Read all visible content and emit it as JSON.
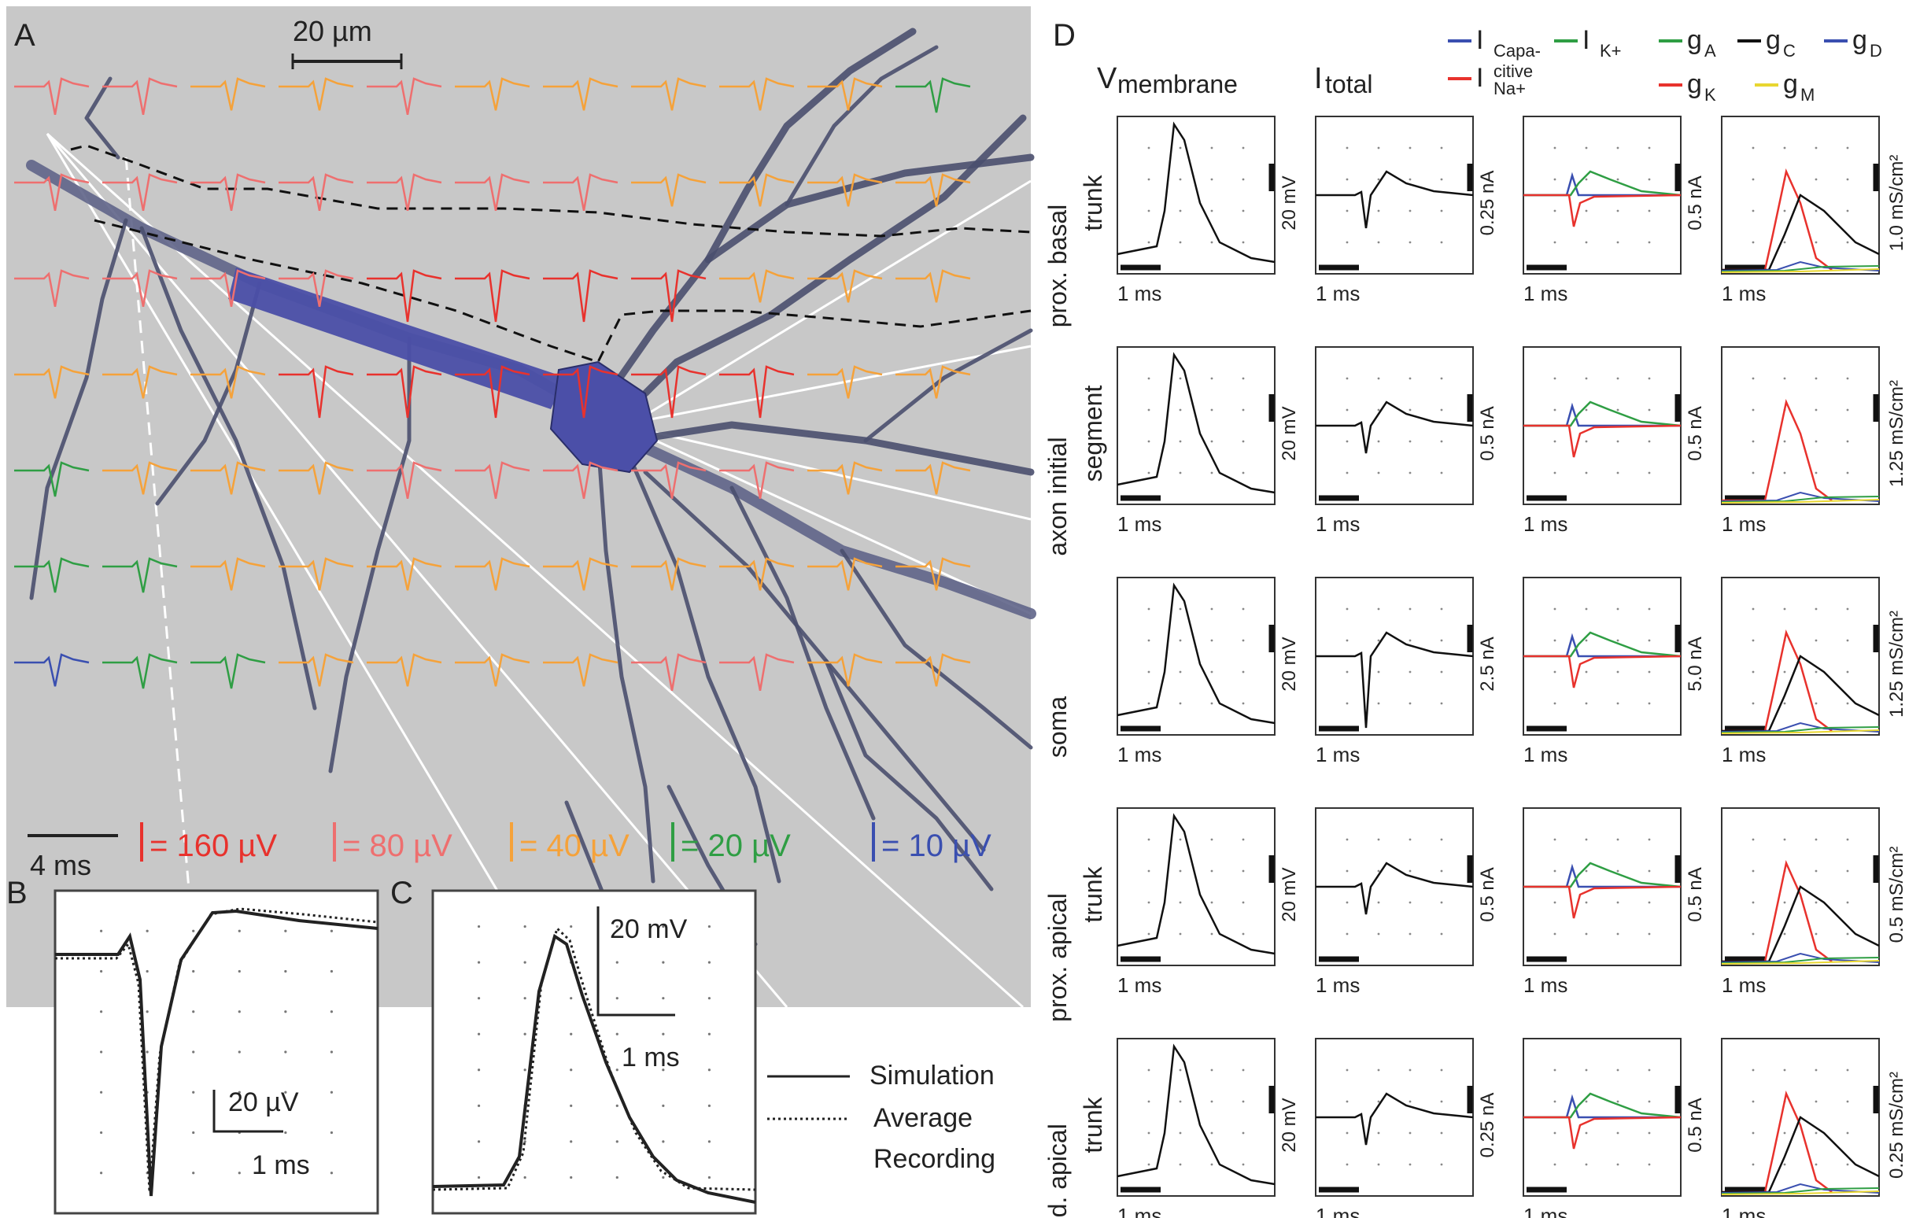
{
  "panels": {
    "A": {
      "letter": "A",
      "scale_bar_space": "20 µm",
      "scale_bar_time": "4 ms",
      "amplitude_legend": [
        {
          "text": "= 160 µV",
          "color": "#e8322d"
        },
        {
          "text": "= 80 µV",
          "color": "#ee6f6f"
        },
        {
          "text": "= 40 µV",
          "color": "#f5a23a"
        },
        {
          "text": "= 20 µV",
          "color": "#2f9e44"
        },
        {
          "text": "= 10 µV",
          "color": "#3a4fb0"
        }
      ],
      "colors": {
        "background": "#c8c8c8",
        "neuron": "#4a4f6e",
        "soma": "#4b4fa8",
        "contour": "#111111",
        "lines": "#ffffff"
      }
    },
    "B": {
      "letter": "B",
      "scale_amp": "20 µV",
      "scale_time": "1 ms"
    },
    "C": {
      "letter": "C",
      "scale_amp": "20 mV",
      "scale_time": "1 ms",
      "legend_sim": "Simulation",
      "legend_avg": "Average",
      "legend_rec": "Recording"
    },
    "D": {
      "letter": "D",
      "col_headers": {
        "vm_main": "V",
        "vm_sub": "membrane",
        "it_main": "I",
        "it_sub": "total"
      },
      "legend": [
        {
          "main": "I",
          "sub": "Capa-",
          "sub2": "citive",
          "color": "#3a4fb0"
        },
        {
          "main": "I",
          "sub": "K+",
          "color": "#2f9e44"
        },
        {
          "main": "I",
          "sub": "Na+",
          "color": "#e8322d"
        },
        {
          "main": "g",
          "sub": "A",
          "color": "#2f9e44"
        },
        {
          "main": "g",
          "sub": "C",
          "color": "#111111"
        },
        {
          "main": "g",
          "sub": "D",
          "color": "#3a4fb0"
        },
        {
          "main": "g",
          "sub": "K",
          "color": "#e8322d"
        },
        {
          "main": "g",
          "sub": "M",
          "color": "#e8d630"
        }
      ],
      "time_label": "1 ms",
      "rows": [
        {
          "label1": "prox. basal",
          "label2": "trunk",
          "vm_scale": "20 mV",
          "i_scale": "0.25 nA",
          "g_i_scale": "0.5 nA",
          "g_scale": "1.0 mS/cm²"
        },
        {
          "label1": "axon initial",
          "label2": "segment",
          "vm_scale": "20 mV",
          "i_scale": "0.5 nA",
          "g_i_scale": "0.5 nA",
          "g_scale": "1.25 mS/cm²"
        },
        {
          "label1": "soma",
          "label2": "",
          "vm_scale": "20 mV",
          "i_scale": "2.5 nA",
          "g_i_scale": "5.0 nA",
          "g_scale": "1.25 mS/cm²"
        },
        {
          "label1": "prox. apical",
          "label2": "trunk",
          "vm_scale": "20 mV",
          "i_scale": "0.5 nA",
          "g_i_scale": "0.5 nA",
          "g_scale": "0.5 mS/cm²"
        },
        {
          "label1": "med. apical",
          "label2": "trunk",
          "vm_scale": "20 mV",
          "i_scale": "0.25 nA",
          "g_i_scale": "0.5 nA",
          "g_scale": "0.25 mS/cm²"
        }
      ]
    }
  }
}
